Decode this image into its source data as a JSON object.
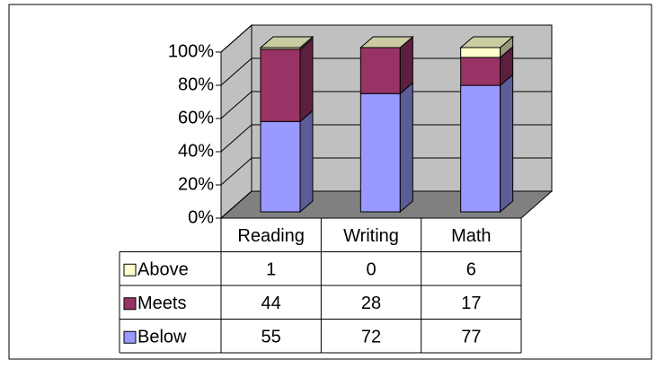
{
  "chart_data": {
    "type": "bar3d_stacked",
    "categories": [
      "Reading",
      "Writing",
      "Math"
    ],
    "series": [
      {
        "name": "Below",
        "color": "#9999ff",
        "values": [
          55,
          72,
          77
        ]
      },
      {
        "name": "Meets",
        "color": "#993366",
        "values": [
          44,
          28,
          17
        ]
      },
      {
        "name": "Above",
        "color": "#ffffcc",
        "values": [
          1,
          0,
          6
        ]
      }
    ],
    "ylim": [
      0,
      100
    ],
    "yticks": [
      {
        "value": 0,
        "label": "0%"
      },
      {
        "value": 20,
        "label": "20%"
      },
      {
        "value": 40,
        "label": "40%"
      },
      {
        "value": 60,
        "label": "60%"
      },
      {
        "value": 80,
        "label": "80%"
      },
      {
        "value": 100,
        "label": "100%"
      }
    ],
    "grid": true,
    "data_table": true
  }
}
